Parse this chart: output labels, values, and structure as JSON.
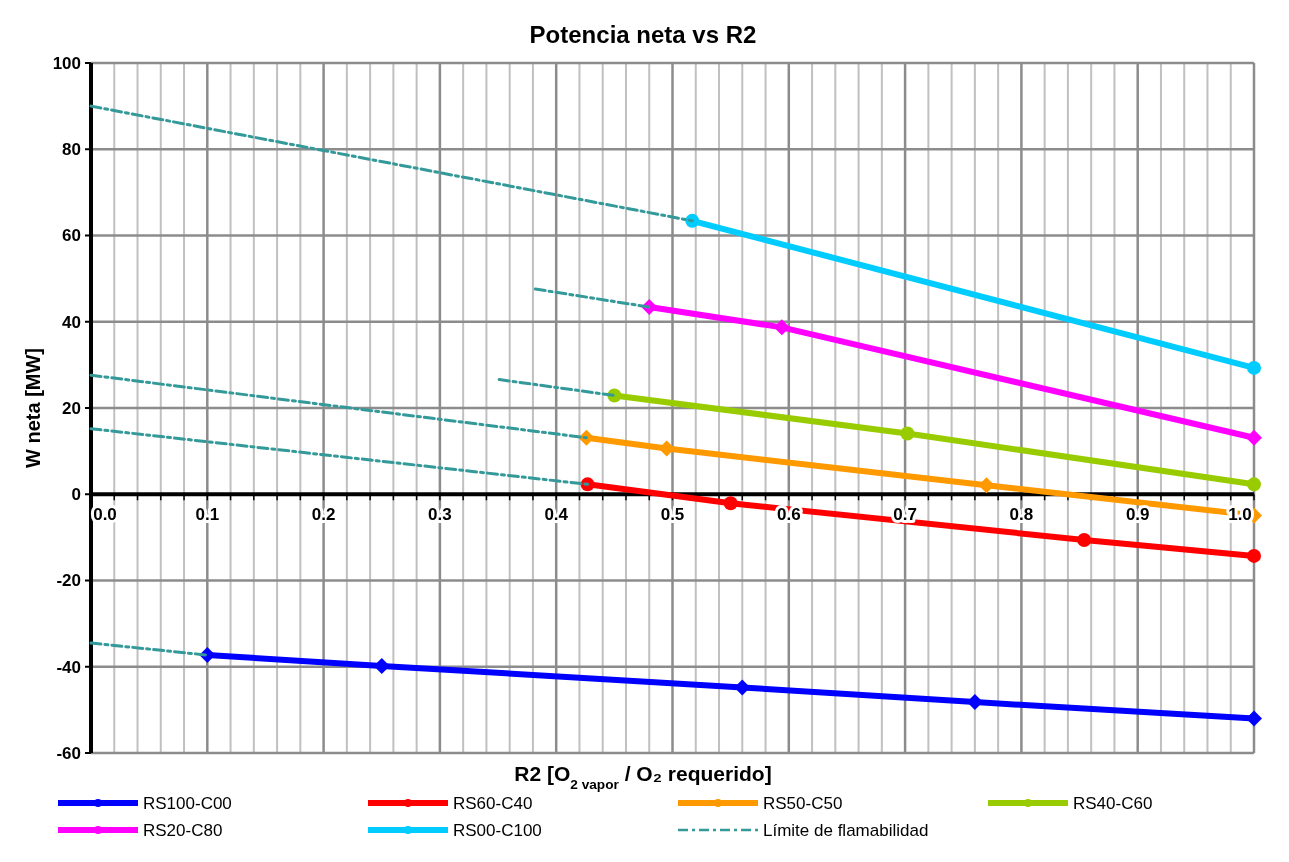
{
  "chart_data": {
    "type": "line",
    "title": "Potencia neta vs R2",
    "xlabel": "R2 [O$_{2 vapor}$ / O₂ requerido]",
    "ylabel": "W neta  [MW]",
    "xlim": [
      0,
      1
    ],
    "ylim": [
      -60,
      100
    ],
    "xticks": [
      {
        "value": 0,
        "label": "0.0"
      },
      {
        "value": 0.02,
        "label": null
      },
      {
        "value": 0.04,
        "label": null
      },
      {
        "value": 0.06,
        "label": null
      },
      {
        "value": 0.08,
        "label": null
      },
      {
        "value": 0.1,
        "label": "0.1"
      },
      {
        "value": 0.12,
        "label": null
      },
      {
        "value": 0.14,
        "label": null
      },
      {
        "value": 0.16,
        "label": null
      },
      {
        "value": 0.18,
        "label": null
      },
      {
        "value": 0.2,
        "label": "0.2"
      },
      {
        "value": 0.22,
        "label": null
      },
      {
        "value": 0.24,
        "label": null
      },
      {
        "value": 0.26,
        "label": null
      },
      {
        "value": 0.28,
        "label": null
      },
      {
        "value": 0.3,
        "label": "0.3"
      },
      {
        "value": 0.32,
        "label": null
      },
      {
        "value": 0.34,
        "label": null
      },
      {
        "value": 0.36,
        "label": null
      },
      {
        "value": 0.38,
        "label": null
      },
      {
        "value": 0.4,
        "label": "0.4"
      },
      {
        "value": 0.42,
        "label": null
      },
      {
        "value": 0.44,
        "label": null
      },
      {
        "value": 0.46,
        "label": null
      },
      {
        "value": 0.48,
        "label": null
      },
      {
        "value": 0.5,
        "label": "0.5"
      },
      {
        "value": 0.52,
        "label": null
      },
      {
        "value": 0.54,
        "label": null
      },
      {
        "value": 0.56,
        "label": null
      },
      {
        "value": 0.58,
        "label": null
      },
      {
        "value": 0.6,
        "label": "0.6"
      },
      {
        "value": 0.62,
        "label": null
      },
      {
        "value": 0.64,
        "label": null
      },
      {
        "value": 0.66,
        "label": null
      },
      {
        "value": 0.68,
        "label": null
      },
      {
        "value": 0.7,
        "label": "0.7"
      },
      {
        "value": 0.72,
        "label": null
      },
      {
        "value": 0.74,
        "label": null
      },
      {
        "value": 0.76,
        "label": null
      },
      {
        "value": 0.78,
        "label": null
      },
      {
        "value": 0.8,
        "label": "0.8"
      },
      {
        "value": 0.82,
        "label": null
      },
      {
        "value": 0.84,
        "label": null
      },
      {
        "value": 0.86,
        "label": null
      },
      {
        "value": 0.88,
        "label": null
      },
      {
        "value": 0.9,
        "label": "0.9"
      },
      {
        "value": 0.92,
        "label": null
      },
      {
        "value": 0.94,
        "label": null
      },
      {
        "value": 0.96,
        "label": null
      },
      {
        "value": 0.98,
        "label": null
      },
      {
        "value": 1,
        "label": "1.0"
      }
    ],
    "yticks": [
      -60,
      -40,
      -20,
      0,
      20,
      40,
      60,
      80,
      100
    ],
    "grid": true,
    "legend": "bottom",
    "line_style": "solid",
    "series": [
      {
        "name": "RS100-C00",
        "color": "#0000ff",
        "marker": "diamond",
        "x": [
          0.1,
          0.25,
          0.56,
          0.76,
          1.0
        ],
        "values": [
          -37.3,
          -39.8,
          -44.8,
          -48.2,
          -52.0
        ]
      },
      {
        "name": "RS60-C40",
        "color": "#ff0000",
        "marker": "circle",
        "x": [
          0.427,
          0.55,
          0.854,
          1.0
        ],
        "values": [
          2.3,
          -2.1,
          -10.6,
          -14.3
        ]
      },
      {
        "name": "RS50-C50",
        "color": "#ff9900",
        "marker": "diamond",
        "x": [
          0.426,
          0.495,
          0.77,
          1.0
        ],
        "values": [
          13.1,
          10.6,
          2.1,
          -4.9
        ]
      },
      {
        "name": "RS40-C60",
        "color": "#99cc00",
        "marker": "circle",
        "x": [
          0.45,
          0.702,
          1.0
        ],
        "values": [
          22.9,
          14.1,
          2.3
        ]
      },
      {
        "name": "RS20-C80",
        "color": "#ff00ff",
        "marker": "diamond",
        "x": [
          0.48,
          0.594,
          1.0
        ],
        "values": [
          43.4,
          38.7,
          13.1
        ]
      },
      {
        "name": "RS00-C100",
        "color": "#00ccff",
        "marker": "circle",
        "x": [
          0.517,
          1.0
        ],
        "values": [
          63.4,
          29.3
        ]
      },
      {
        "name": "Límite de flamabilidad",
        "color": "#339999",
        "marker": "none",
        "line_style": "dashed",
        "x": [
          0,
          0.517
        ],
        "values": [
          90,
          63.4
        ]
      },
      {
        "color": "#339999",
        "marker": "none",
        "line_style": "dashed",
        "x": [
          0.382,
          0.48
        ],
        "values": [
          47.6,
          43.4
        ]
      },
      {
        "color": "#339999",
        "marker": "none",
        "line_style": "dashed",
        "x": [
          0.351,
          0.45
        ],
        "values": [
          26.6,
          22.9
        ]
      },
      {
        "color": "#339999",
        "marker": "none",
        "line_style": "dashed",
        "x": [
          0,
          0.426
        ],
        "values": [
          27.6,
          13.1
        ]
      },
      {
        "color": "#339999",
        "marker": "none",
        "line_style": "dashed",
        "x": [
          0,
          0.427
        ],
        "values": [
          15.2,
          2.3
        ]
      },
      {
        "color": "#339999",
        "marker": "none",
        "line_style": "dashed",
        "x": [
          0,
          0.1
        ],
        "values": [
          -34.5,
          -37.3
        ]
      }
    ]
  }
}
